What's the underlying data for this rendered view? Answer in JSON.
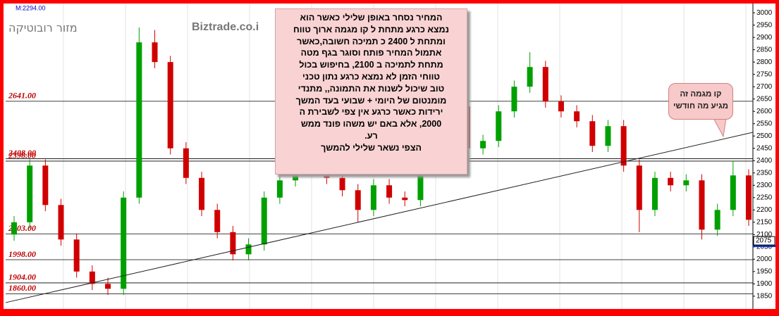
{
  "chart_data": {
    "type": "candlestick",
    "header": "M:2294.00",
    "watermarks": [
      "מזור רובוטיקה",
      "Biztrade.co.i"
    ],
    "up_color": "#00a000",
    "down_color": "#d00000",
    "open": [
      2100,
      2150,
      2380,
      2220,
      2080,
      1950,
      1900,
      1880,
      2250,
      2880,
      2800,
      2450,
      2330,
      2200,
      2110,
      2020,
      2060,
      2250,
      2320,
      2380,
      2400,
      2330,
      2280,
      2200,
      2300,
      2250,
      2240,
      2380,
      2580,
      2620,
      2450,
      2480,
      2600,
      2700,
      2780,
      2640,
      2600,
      2560,
      2460,
      2540,
      2380,
      2200,
      2330,
      2300,
      2320,
      2120,
      2200,
      2340
    ],
    "high": [
      2175,
      2405,
      2405,
      2245,
      2105,
      1975,
      1925,
      2275,
      2940,
      2930,
      2825,
      2475,
      2355,
      2225,
      2135,
      2085,
      2275,
      2345,
      2405,
      2425,
      2425,
      2355,
      2305,
      2325,
      2325,
      2275,
      2405,
      2605,
      2660,
      2645,
      2505,
      2625,
      2725,
      2840,
      2805,
      2665,
      2625,
      2585,
      2565,
      2565,
      2405,
      2355,
      2355,
      2345,
      2345,
      2225,
      2400,
      2365
    ],
    "low": [
      2075,
      2125,
      2195,
      2055,
      1925,
      1875,
      1855,
      1855,
      2225,
      2775,
      2425,
      2305,
      2175,
      2085,
      1995,
      1995,
      2035,
      2225,
      2295,
      2355,
      2305,
      2255,
      2150,
      2175,
      2225,
      2215,
      2215,
      2355,
      2555,
      2400,
      2425,
      2455,
      2575,
      2675,
      2615,
      2575,
      2535,
      2435,
      2435,
      2355,
      2110,
      2175,
      2275,
      2275,
      2080,
      2095,
      2175,
      2135
    ],
    "close": [
      2150,
      2380,
      2220,
      2080,
      1950,
      1900,
      1880,
      2250,
      2880,
      2800,
      2450,
      2330,
      2200,
      2110,
      2020,
      2060,
      2250,
      2320,
      2380,
      2400,
      2330,
      2280,
      2200,
      2300,
      2250,
      2240,
      2380,
      2580,
      2620,
      2450,
      2480,
      2600,
      2700,
      2780,
      2640,
      2600,
      2560,
      2460,
      2540,
      2380,
      2200,
      2330,
      2300,
      2320,
      2120,
      2200,
      2340,
      2160
    ],
    "ylim": [
      1801,
      3029
    ],
    "yticks": [
      1850,
      1900,
      1950,
      2000,
      2050,
      2100,
      2150,
      2200,
      2250,
      2300,
      2350,
      2400,
      2450,
      2500,
      2550,
      2600,
      2650,
      2700,
      2750,
      2800,
      2850,
      2900,
      2950,
      3000
    ],
    "levels": [
      {
        "value": 2641,
        "label": "2641.00"
      },
      {
        "value": 2408,
        "label": "2408.00"
      },
      {
        "value": 2398,
        "label": "2398.00"
      },
      {
        "value": 2103,
        "label": "2103.00"
      },
      {
        "value": 1998,
        "label": "1998.00"
      },
      {
        "value": 1904,
        "label": "1904.00"
      },
      {
        "value": 1860,
        "label": "1860.00"
      }
    ],
    "trendline": [
      1824,
      2515
    ],
    "last_price": 2075,
    "annotation": [
      "המחיר נסחר באופן שלילי כאשר הוא",
      "נמצא כרגע מתחת ל קו מגמה ארוך טווח",
      "ומתחת ל 2400 כ תמיכה חשובה,כאשר",
      "אתמול המחיר פותח וסוגר בגף מטה",
      "מתחת לתמיכה ב 2100, בחיפוש בכול",
      "טווחי הזמן לא נמצא כרגע נתון טכני",
      "טוב שיכול לשנות את התמונה,, מתנדי",
      "מומנטום של היומי + שבועי בעד המשך",
      "ירידות כאשר כרגע אין צפי לשבירת ה",
      "2000, אלא באם יש משהו פונד ממש",
      "רע.",
      "הצפי נשאר שלילי להמשך"
    ],
    "callout": [
      "קו מגמה זה",
      "מגיע מה חודשי"
    ]
  }
}
